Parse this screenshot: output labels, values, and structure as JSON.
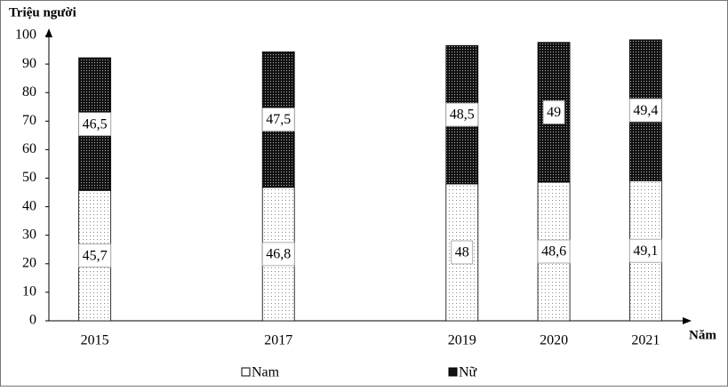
{
  "chart_data": {
    "type": "stacked-bar",
    "y_label": "Triệu người",
    "x_label": "Năm",
    "x": [
      2015,
      2017,
      2019,
      2020,
      2021
    ],
    "xlim": [
      2014.5,
      2021.5
    ],
    "xticks": [
      2015,
      2017,
      2019,
      2020,
      2021
    ],
    "ylim": [
      0,
      100
    ],
    "yticks": [
      0,
      10,
      20,
      30,
      40,
      50,
      60,
      70,
      80,
      90,
      100
    ],
    "grid": false,
    "series": [
      {
        "name": "Nam",
        "values": [
          45.7,
          46.8,
          48,
          48.6,
          49.1
        ],
        "value_labels": [
          "45,7",
          "46,8",
          "48",
          "48,6",
          "49,1"
        ]
      },
      {
        "name": "Nữ",
        "values": [
          46.5,
          47.5,
          48.5,
          49,
          49.4
        ],
        "value_labels": [
          "46,5",
          "47,5",
          "48,5",
          "49",
          "49,4"
        ]
      }
    ]
  }
}
